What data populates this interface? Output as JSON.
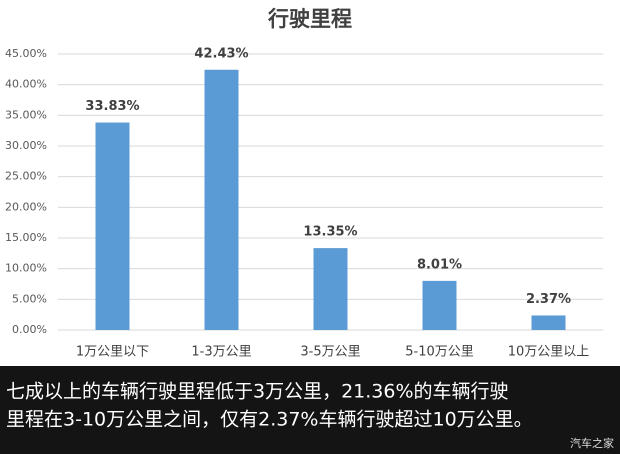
{
  "chart_data": {
    "type": "bar",
    "title": "行驶里程",
    "categories": [
      "1万公里以下",
      "1-3万公里",
      "3-5万公里",
      "5-10万公里",
      "10万公里以上"
    ],
    "values": [
      33.83,
      42.43,
      13.35,
      8.01,
      2.37
    ],
    "value_labels": [
      "33.83%",
      "42.43%",
      "13.35%",
      "8.01%",
      "2.37%"
    ],
    "color": "#5b9bd5",
    "ylim": [
      0,
      45
    ],
    "yticks": [
      {
        "value": 0,
        "label": "0.00%"
      },
      {
        "value": 5,
        "label": "5.00%"
      },
      {
        "value": 10,
        "label": "10.00%"
      },
      {
        "value": 15,
        "label": "15.00%"
      },
      {
        "value": 20,
        "label": "20.00%"
      },
      {
        "value": 25,
        "label": "25.00%"
      },
      {
        "value": 30,
        "label": "30.00%"
      },
      {
        "value": 35,
        "label": "35.00%"
      },
      {
        "value": 40,
        "label": "40.00%"
      },
      {
        "value": 45,
        "label": "45.00%"
      }
    ],
    "grid": true
  },
  "caption": {
    "lines": [
      "七成以上的车辆行驶里程低于3万公里，21.36%的车辆行驶",
      "里程在3-10万公里之间，仅有2.37%车辆行驶超过10万公里。"
    ]
  },
  "watermark": "汽车之家"
}
